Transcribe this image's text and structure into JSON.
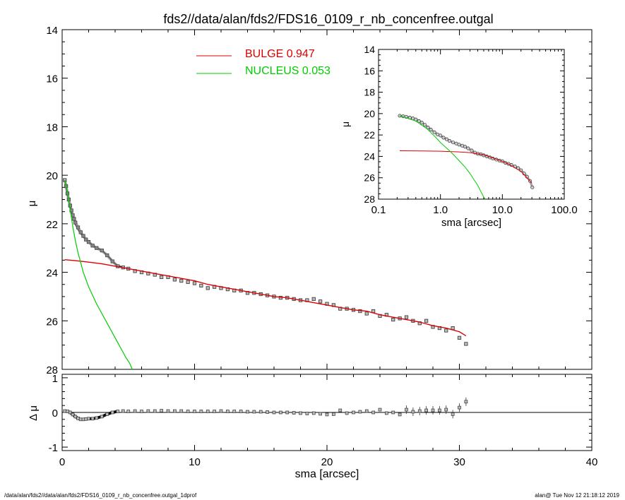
{
  "title": "fds2//data/alan/fds2/FDS16_0109_r_nb_concenfree.outgal",
  "footer_left": "/data/alan/fds2//data/alan/fds2/FDS16_0109_r_nb_concenfree.outgal_1dprof",
  "footer_right": "alan@  Tue Nov 12 21:18:12 2019",
  "colors": {
    "bulge": "#dd0000",
    "nucleus": "#00cc00",
    "data": "#333333",
    "axes": "#000000"
  },
  "chart_data": [
    {
      "type": "line",
      "name": "main",
      "title": "fds2//data/alan/fds2/FDS16_0109_r_nb_concenfree.outgal",
      "xlabel": "",
      "ylabel": "μ",
      "xlim": [
        0,
        40
      ],
      "ylim": [
        28,
        14
      ],
      "x_ticks": [
        0,
        10,
        20,
        30,
        40
      ],
      "y_ticks": [
        14,
        16,
        18,
        20,
        22,
        24,
        26,
        28
      ],
      "y_tick_labels": [
        "14",
        "16",
        "18",
        "20",
        "22",
        "24",
        "26",
        "28"
      ],
      "legend": [
        {
          "label": "BULGE  0.947",
          "color": "#dd0000"
        },
        {
          "label": "NUCLEUS  0.053",
          "color": "#00cc00"
        }
      ],
      "series": [
        {
          "name": "data",
          "style": "squares",
          "x": [
            0.2,
            0.3,
            0.4,
            0.5,
            0.6,
            0.7,
            0.8,
            0.9,
            1.0,
            1.2,
            1.4,
            1.6,
            1.8,
            2.0,
            2.3,
            2.6,
            3.0,
            3.4,
            3.8,
            4.2,
            4.6,
            5.0,
            5.5,
            6.0,
            6.5,
            7.0,
            7.5,
            8.0,
            8.5,
            9.0,
            9.5,
            10.0,
            10.5,
            11.0,
            11.5,
            12.0,
            12.5,
            13.0,
            13.5,
            14.0,
            14.5,
            15.0,
            15.5,
            16.0,
            16.5,
            17.0,
            17.5,
            18.0,
            18.5,
            19.0,
            19.5,
            20.0,
            20.5,
            21.0,
            21.5,
            22.0,
            22.5,
            23.0,
            23.5,
            24.0,
            24.5,
            25.0,
            25.5,
            26.0,
            26.5,
            27.0,
            27.5,
            28.0,
            28.5,
            29.0,
            29.5,
            30.0,
            30.5
          ],
          "y": [
            20.2,
            20.45,
            20.75,
            21.0,
            21.25,
            21.45,
            21.65,
            21.8,
            21.95,
            22.15,
            22.35,
            22.5,
            22.65,
            22.75,
            22.9,
            23.0,
            23.1,
            23.3,
            23.55,
            23.75,
            23.8,
            23.85,
            23.95,
            24.0,
            24.05,
            24.1,
            24.2,
            24.2,
            24.3,
            24.35,
            24.4,
            24.45,
            24.55,
            24.65,
            24.6,
            24.65,
            24.7,
            24.75,
            24.75,
            24.85,
            24.85,
            24.9,
            24.95,
            25.0,
            25.05,
            25.05,
            25.1,
            25.15,
            25.15,
            25.1,
            25.2,
            25.3,
            25.35,
            25.5,
            25.5,
            25.55,
            25.6,
            25.7,
            25.6,
            25.8,
            25.75,
            25.95,
            25.9,
            25.85,
            26.0,
            26.1,
            26.0,
            26.25,
            26.3,
            26.4,
            26.3,
            26.7,
            26.95
          ]
        },
        {
          "name": "bulge",
          "style": "line",
          "color": "#dd0000",
          "x": [
            0.2,
            1,
            2,
            3,
            4,
            5,
            6,
            7,
            8,
            9,
            10,
            11,
            12,
            13,
            14,
            15,
            16,
            17,
            18,
            19,
            20,
            21,
            22,
            23,
            24,
            25,
            26,
            27,
            28,
            29,
            30,
            30.5
          ],
          "y": [
            23.48,
            23.52,
            23.58,
            23.65,
            23.75,
            23.85,
            23.95,
            24.05,
            24.15,
            24.25,
            24.35,
            24.5,
            24.6,
            24.7,
            24.8,
            24.9,
            25.0,
            25.05,
            25.15,
            25.25,
            25.35,
            25.45,
            25.55,
            25.6,
            25.75,
            25.85,
            25.95,
            26.05,
            26.2,
            26.3,
            26.45,
            26.62
          ]
        },
        {
          "name": "nucleus",
          "style": "line",
          "color": "#00cc00",
          "x": [
            0.2,
            0.4,
            0.6,
            0.8,
            1.0,
            1.2,
            1.4,
            1.6,
            1.8,
            2.0,
            2.3,
            2.6,
            3.0,
            3.4,
            3.8,
            4.2,
            4.5,
            4.8,
            5.1,
            5.3
          ],
          "y": [
            20.2,
            20.7,
            21.4,
            22.1,
            22.7,
            23.2,
            23.6,
            24.0,
            24.3,
            24.6,
            24.95,
            25.3,
            25.7,
            26.1,
            26.5,
            26.9,
            27.2,
            27.5,
            27.75,
            28.0
          ]
        },
        {
          "name": "model",
          "style": "line",
          "color": "#000000",
          "x": [
            0.2,
            0.4,
            0.6,
            0.8,
            1.0,
            1.3,
            1.6,
            2.0,
            2.5,
            3.0,
            3.5,
            4.0,
            4.5,
            5.0
          ],
          "y": [
            20.2,
            20.8,
            21.3,
            21.75,
            22.05,
            22.35,
            22.55,
            22.75,
            22.95,
            23.1,
            23.35,
            23.65,
            23.78,
            23.85
          ]
        }
      ]
    },
    {
      "type": "scatter",
      "name": "inset",
      "xlabel": "sma [arcsec]",
      "ylabel": "μ",
      "x_scale": "log",
      "xlim": [
        0.1,
        100
      ],
      "ylim": [
        28,
        14
      ],
      "x_ticks": [
        0.1,
        1,
        10,
        100
      ],
      "x_tick_labels": [
        "0.1",
        "1.0",
        "10.0",
        "100.0"
      ],
      "y_ticks": [
        14,
        16,
        18,
        20,
        22,
        24,
        26,
        28
      ],
      "y_tick_labels": [
        "14",
        "16",
        "18",
        "20",
        "22",
        "24",
        "26",
        "28"
      ],
      "series": [
        {
          "name": "data",
          "style": "circles",
          "x": [
            0.22,
            0.25,
            0.28,
            0.32,
            0.36,
            0.4,
            0.45,
            0.5,
            0.56,
            0.63,
            0.7,
            0.8,
            0.9,
            1.0,
            1.12,
            1.26,
            1.4,
            1.6,
            1.8,
            2.0,
            2.25,
            2.5,
            2.8,
            3.2,
            3.6,
            4.0,
            4.5,
            5.0,
            5.6,
            6.3,
            7.0,
            8.0,
            9.0,
            10.0,
            11.2,
            12.6,
            14.0,
            16.0,
            18.0,
            20.0,
            22.5,
            25.0,
            28.0,
            30.5
          ],
          "y": [
            20.2,
            20.25,
            20.3,
            20.38,
            20.45,
            20.55,
            20.7,
            20.85,
            21.05,
            21.3,
            21.5,
            21.75,
            21.95,
            22.05,
            22.25,
            22.4,
            22.55,
            22.7,
            22.8,
            22.9,
            23.0,
            23.1,
            23.25,
            23.45,
            23.65,
            23.75,
            23.8,
            23.9,
            24.0,
            24.1,
            24.2,
            24.3,
            24.4,
            24.45,
            24.6,
            24.7,
            24.8,
            24.95,
            25.1,
            25.3,
            25.6,
            25.9,
            26.3,
            26.9
          ]
        },
        {
          "name": "bulge",
          "style": "line",
          "color": "#dd0000",
          "x": [
            0.22,
            0.5,
            1,
            2,
            3,
            5,
            8,
            12,
            20,
            30
          ],
          "y": [
            23.48,
            23.49,
            23.52,
            23.58,
            23.65,
            23.85,
            24.25,
            24.65,
            25.4,
            26.5
          ]
        },
        {
          "name": "nucleus",
          "style": "line",
          "color": "#00cc00",
          "x": [
            0.22,
            0.4,
            0.6,
            0.8,
            1.0,
            1.3,
            1.6,
            2.0,
            2.5,
            3.0,
            3.5,
            4.0,
            4.5,
            5.0,
            5.3
          ],
          "y": [
            20.2,
            20.7,
            21.4,
            22.1,
            22.7,
            23.3,
            23.8,
            24.4,
            25.0,
            25.6,
            26.2,
            26.7,
            27.3,
            27.8,
            28.0
          ]
        }
      ]
    },
    {
      "type": "scatter",
      "name": "residual",
      "xlabel": "sma [arcsec]",
      "ylabel": "Δ μ",
      "xlim": [
        0,
        40
      ],
      "ylim": [
        -1.1,
        1.1
      ],
      "x_ticks": [
        0,
        10,
        20,
        30,
        40
      ],
      "x_tick_labels": [
        "0",
        "10",
        "20",
        "30",
        "40"
      ],
      "y_ticks": [
        1,
        0,
        -1
      ],
      "y_tick_labels": [
        "1",
        "0",
        "-1"
      ],
      "series": [
        {
          "name": "residuals",
          "style": "squares",
          "x": [
            0.2,
            0.4,
            0.6,
            0.8,
            1.0,
            1.2,
            1.4,
            1.6,
            1.8,
            2.0,
            2.3,
            2.6,
            3.0,
            3.4,
            3.8,
            4.2,
            4.6,
            5.0,
            5.5,
            6.0,
            6.5,
            7.0,
            7.5,
            8.0,
            8.5,
            9.0,
            9.5,
            10.0,
            10.5,
            11.0,
            11.5,
            12.0,
            12.5,
            13.0,
            13.5,
            14.0,
            14.5,
            15.0,
            15.5,
            16.0,
            16.5,
            17.0,
            17.5,
            18.0,
            18.5,
            19.0,
            19.5,
            20.0,
            20.5,
            21.0,
            21.5,
            22.0,
            22.5,
            23.0,
            23.5,
            24.0,
            24.5,
            25.0,
            25.5,
            26.0,
            26.5,
            27.0,
            27.5,
            28.0,
            28.5,
            29.0,
            29.5,
            30.0,
            30.5
          ],
          "y": [
            0.04,
            0.03,
            0.0,
            -0.06,
            -0.12,
            -0.17,
            -0.2,
            -0.2,
            -0.19,
            -0.18,
            -0.18,
            -0.16,
            -0.12,
            -0.05,
            0.0,
            0.03,
            0.04,
            0.03,
            0.04,
            0.03,
            0.04,
            0.04,
            0.05,
            0.04,
            0.04,
            0.04,
            0.03,
            0.03,
            0.03,
            0.03,
            0.03,
            0.04,
            0.03,
            0.03,
            0.03,
            0.02,
            0.02,
            0.02,
            0.01,
            0.0,
            0.0,
            0.0,
            -0.01,
            -0.02,
            -0.03,
            -0.02,
            -0.04,
            -0.06,
            -0.05,
            0.06,
            -0.02,
            0.0,
            0.02,
            0.04,
            0.0,
            0.08,
            -0.02,
            0.0,
            -0.06,
            0.08,
            0.02,
            0.04,
            0.06,
            0.06,
            0.06,
            0.08,
            -0.05,
            0.14,
            0.31
          ]
        }
      ]
    }
  ]
}
